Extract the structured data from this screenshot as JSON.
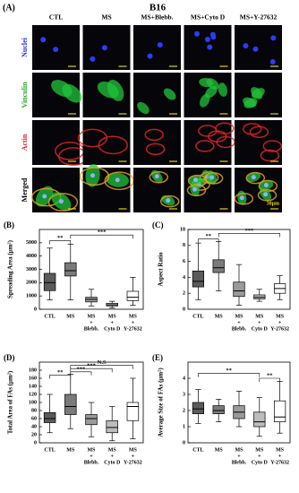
{
  "panel_a": {
    "label": "(A)",
    "title": "B16",
    "columns": [
      "CTL",
      "MS",
      "MS+Blebb.",
      "MS+Cyto D",
      "MS+Y-27632"
    ],
    "rows": [
      "Nuclei",
      "Vinculin",
      "Actin",
      "Merged"
    ],
    "row_colors": [
      "#2233dd",
      "#22aa22",
      "#dd2222",
      "#000000"
    ],
    "scale_bar": "30μm"
  },
  "chart_data": [
    {
      "type": "box",
      "label": "(B)",
      "y_label": "Spreading Area (μm²)",
      "categories": [
        [
          "CTL"
        ],
        [
          "MS"
        ],
        [
          "MS",
          "+",
          "Blebb."
        ],
        [
          "MS",
          "+",
          "Cyto D"
        ],
        [
          "MS",
          "+",
          "Y-27632"
        ]
      ],
      "colors": [
        "#5a5a5a",
        "#7a7a7a",
        "#9a9a9a",
        "#bcbcbc",
        "#ffffff"
      ],
      "min": [
        700,
        700,
        250,
        100,
        300
      ],
      "q1": [
        1400,
        2500,
        550,
        250,
        650
      ],
      "median": [
        2000,
        2900,
        750,
        330,
        900
      ],
      "q3": [
        2700,
        3500,
        900,
        450,
        1350
      ],
      "max": [
        4600,
        4900,
        1500,
        600,
        2400
      ],
      "ylim": [
        0,
        6000
      ],
      "yticks": [
        0,
        1000,
        2000,
        3000,
        4000,
        5000
      ],
      "annotations": [
        "**",
        "***"
      ]
    },
    {
      "type": "box",
      "label": "(C)",
      "y_label": "Aspect Ratio",
      "categories": [
        [
          "CTL"
        ],
        [
          "MS"
        ],
        [
          "MS",
          "+",
          "Blebb."
        ],
        [
          "MS",
          "+",
          "Cyto D"
        ],
        [
          "MS",
          "+",
          "Y-27632"
        ]
      ],
      "colors": [
        "#5a5a5a",
        "#7a7a7a",
        "#9a9a9a",
        "#bcbcbc",
        "#ffffff"
      ],
      "min": [
        1.2,
        2.3,
        0.5,
        1.0,
        1.2
      ],
      "q1": [
        2.8,
        4.6,
        1.6,
        1.3,
        2.0
      ],
      "median": [
        3.5,
        5.2,
        2.3,
        1.5,
        2.6
      ],
      "q3": [
        4.8,
        6.2,
        3.4,
        1.8,
        3.2
      ],
      "max": [
        8.3,
        8.5,
        5.6,
        2.5,
        4.2
      ],
      "ylim": [
        0,
        10
      ],
      "yticks": [
        0,
        2,
        4,
        6,
        8,
        10
      ],
      "annotations": [
        "**",
        "***"
      ]
    },
    {
      "type": "box",
      "label": "(D)",
      "y_label": "Total Area of FAs (μm²)",
      "categories": [
        [
          "CTL"
        ],
        [
          "MS"
        ],
        [
          "MS",
          "+",
          "Blebb."
        ],
        [
          "MS",
          "+",
          "Cyto D"
        ],
        [
          "MS",
          "+",
          "Y-27632"
        ]
      ],
      "colors": [
        "#5a5a5a",
        "#7a7a7a",
        "#9a9a9a",
        "#bcbcbc",
        "#ffffff"
      ],
      "min": [
        25,
        35,
        15,
        5,
        10
      ],
      "q1": [
        50,
        70,
        45,
        25,
        55
      ],
      "median": [
        60,
        90,
        60,
        38,
        90
      ],
      "q3": [
        75,
        120,
        70,
        55,
        100
      ],
      "max": [
        120,
        170,
        100,
        90,
        160
      ],
      "ylim": [
        0,
        200
      ],
      "yticks": [
        0,
        20,
        40,
        60,
        80,
        100,
        120,
        140,
        160,
        180
      ],
      "annotations": [
        "**",
        "***",
        "***",
        "N.S"
      ]
    },
    {
      "type": "box",
      "label": "(E)",
      "y_label": "Average Size of FAs (μm²)",
      "categories": [
        [
          "CTL"
        ],
        [
          "MS"
        ],
        [
          "MS",
          "+",
          "Blebb."
        ],
        [
          "MS",
          "+",
          "Cyto D"
        ],
        [
          "MS",
          "+",
          "Y-27632"
        ]
      ],
      "colors": [
        "#5a5a5a",
        "#7a7a7a",
        "#9a9a9a",
        "#bcbcbc",
        "#ffffff"
      ],
      "min": [
        1.2,
        1.3,
        1.0,
        0.4,
        0.6
      ],
      "q1": [
        1.8,
        1.8,
        1.5,
        1.0,
        1.3
      ],
      "median": [
        2.1,
        2.0,
        1.9,
        1.3,
        1.6
      ],
      "q3": [
        2.5,
        2.3,
        2.3,
        1.9,
        2.6
      ],
      "max": [
        3.3,
        2.7,
        3.2,
        2.8,
        3.8
      ],
      "ylim": [
        0,
        5
      ],
      "yticks": [
        0,
        1,
        2,
        3,
        4
      ],
      "annotations": [
        "**",
        "**"
      ]
    }
  ]
}
